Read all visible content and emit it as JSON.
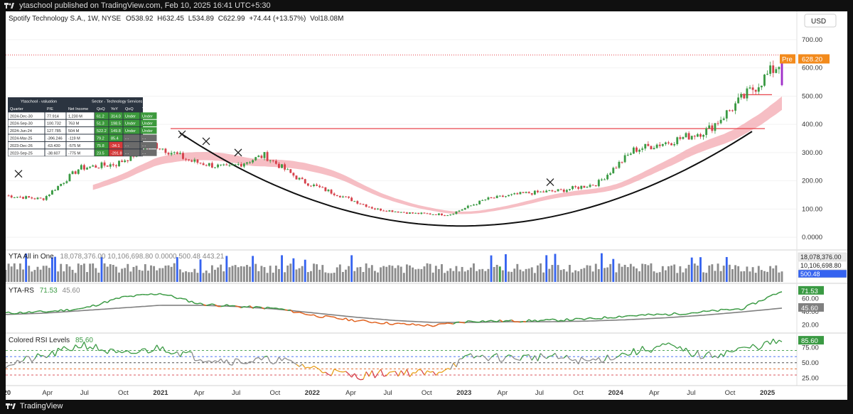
{
  "header": {
    "publisher": "ytaschool published on TradingView.com, Feb 10, 2025 16:41 UTC+5:30"
  },
  "footer": {
    "brand": "TradingView"
  },
  "legend": {
    "symbol": "Spotify Technology S.A., 1W, NYSE",
    "open_label": "O",
    "open": "538.92",
    "high_label": "H",
    "high": "632.45",
    "low_label": "L",
    "low": "534.89",
    "close_label": "C",
    "close": "622.99",
    "change": "+74.44 (+13.57%)",
    "vol_label": "Vol",
    "vol": "18.08M"
  },
  "currency_button": "USD",
  "price_axis": {
    "ticks": [
      "700.00",
      "600.00",
      "500.00",
      "400.00",
      "300.00",
      "200.00",
      "100.00",
      "0.0000"
    ],
    "pre_label": "Pre",
    "last_price": "628.20"
  },
  "time_axis": [
    "2020",
    "Apr",
    "Jul",
    "Oct",
    "2021",
    "Apr",
    "Jul",
    "Oct",
    "2022",
    "Apr",
    "Jul",
    "Oct",
    "2023",
    "Apr",
    "Jul",
    "Oct",
    "2024",
    "Apr",
    "Jul",
    "Oct",
    "2025"
  ],
  "valuation_table": {
    "title_left": "Ytaschool - valuation",
    "title_right": "Sector - Technology Services",
    "headers": [
      "Quarter",
      "P/E",
      "Net Income",
      "QoQ",
      "YoY",
      "QoQ",
      "YoY"
    ],
    "rows": [
      [
        "2024-Dec-30",
        "77.914",
        "1,230 M",
        "61.2",
        "314.0",
        "Under",
        "Under"
      ],
      [
        "2024-Sep-30",
        "100.732",
        "763 M",
        "51.3",
        "198.5",
        "Under",
        "Under"
      ],
      [
        "2024-Jun-24",
        "127.785",
        "504 M",
        "522.2",
        "149.8",
        "Under",
        "Under"
      ],
      [
        "2024-Mar-25",
        "-396.246",
        "-119 M",
        "79.2",
        "85.4",
        "- -",
        "- -"
      ],
      [
        "2023-Dec-26",
        "-63.430",
        "-575 M",
        "75.8",
        "-34.1",
        "- -",
        "- -"
      ],
      [
        "2023-Sep-25",
        "-38.607",
        "-775 M",
        "23.5",
        "-291.8",
        "- -",
        "- -"
      ]
    ],
    "cell_colors": [
      [
        "#3c9a3c",
        "#3c9a3c",
        "#3c9a3c",
        "#3c9a3c"
      ],
      [
        "#3c9a3c",
        "#3c9a3c",
        "#3c9a3c",
        "#3c9a3c"
      ],
      [
        "#3c9a3c",
        "#3c9a3c",
        "#3c9a3c",
        "#3c9a3c"
      ],
      [
        "#3c9a3c",
        "#3c9a3c",
        "#6b6b6b",
        "#6b6b6b"
      ],
      [
        "#3c9a3c",
        "#d63b3b",
        "#6b6b6b",
        "#6b6b6b"
      ],
      [
        "#3c9a3c",
        "#d63b3b",
        "#6b6b6b",
        "#6b6b6b"
      ]
    ]
  },
  "volume_pane": {
    "title": "YTA All in One",
    "values_text": [
      "18,078,376.00",
      "10,106,698.80",
      "0.0000",
      "500.48",
      "443.21"
    ],
    "legend_values": "18,078,376.00  10,106,698.80  0.0000  500.48  443.21",
    "axis_labels": [
      "18,078,376.00",
      "10,106,698.80",
      "500.48"
    ]
  },
  "rs_pane": {
    "title": "YTA-RS",
    "value1": "71.53",
    "value2": "45.60",
    "ticks": [
      "60.00",
      "40.00",
      "20.00"
    ]
  },
  "rsi_pane": {
    "title": "Colored RSI Levels",
    "value": "85.60",
    "ticks": [
      "75.00",
      "50.00",
      "25.00"
    ]
  },
  "colors": {
    "up": "#3a9a43",
    "down": "#d6404a",
    "purple": "#a030c8",
    "resistance": "#e8454d",
    "ribbon": "#f2a3ab",
    "cup": "#101010",
    "rs_line": "#3a9a43",
    "rs_ma": "#808080",
    "price_tag": "#f28a1c",
    "volume_blue": "#3563f0",
    "volume_gray": "#8c8c8c"
  },
  "chart_data": [
    {
      "type": "candlestick",
      "title": "Spotify Technology S.A., 1W, NYSE",
      "ylim": [
        -40,
        740
      ],
      "x": [
        "2020-01",
        "2020-04",
        "2020-07",
        "2020-10",
        "2021-01",
        "2021-04",
        "2021-07",
        "2021-10",
        "2022-01",
        "2022-04",
        "2022-07",
        "2022-10",
        "2023-01",
        "2023-04",
        "2023-07",
        "2023-10",
        "2024-01",
        "2024-04",
        "2024-07",
        "2024-10",
        "2025-01",
        "2025-02"
      ],
      "close": [
        148,
        135,
        245,
        260,
        330,
        270,
        245,
        290,
        200,
        150,
        100,
        85,
        80,
        135,
        155,
        165,
        190,
        310,
        340,
        380,
        500,
        623
      ],
      "last_bar": {
        "open": 538.92,
        "high": 632.45,
        "low": 534.89,
        "close": 622.99
      },
      "resistance_level": 385,
      "upper_level": 505
    },
    {
      "type": "bar",
      "title": "YTA All in One",
      "series": [
        {
          "values": [
            0.35,
            0.4,
            0.3,
            0.5,
            0.45,
            0.6,
            0.4,
            0.35,
            0.55,
            0.5,
            0.3,
            0.35,
            0.45,
            0.4,
            0.55,
            0.5,
            0.35,
            0.4,
            0.45,
            0.6,
            1.0
          ]
        }
      ]
    },
    {
      "type": "line",
      "title": "YTA-RS",
      "ylim": [
        10,
        80
      ],
      "series": [
        {
          "values": [
            38,
            40,
            45,
            62,
            68,
            52,
            48,
            45,
            34,
            27,
            22,
            19,
            26,
            26,
            27,
            29,
            34,
            36,
            40,
            45,
            71.53
          ]
        },
        {
          "values": [
            36,
            38,
            42,
            46,
            50,
            50,
            48,
            44,
            38,
            32,
            27,
            24,
            24,
            25,
            25,
            26,
            28,
            31,
            35,
            40,
            45.6
          ]
        }
      ]
    },
    {
      "type": "line",
      "title": "Colored RSI Levels",
      "ylim": [
        15,
        95
      ],
      "series": [
        {
          "values": [
            48,
            60,
            80,
            62,
            75,
            58,
            52,
            55,
            40,
            28,
            35,
            32,
            60,
            58,
            60,
            52,
            65,
            78,
            60,
            72,
            85.6
          ]
        }
      ]
    }
  ]
}
